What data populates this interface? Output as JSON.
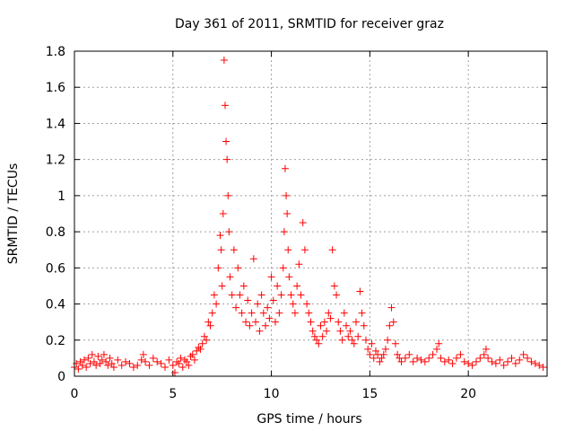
{
  "chart_data": {
    "type": "scatter",
    "title": "Day 361 of 2011, SRMTID for receiver graz",
    "xlabel": "GPS time / hours",
    "ylabel": "SRMTID / TECUs",
    "xlim": [
      0,
      24
    ],
    "ylim": [
      0,
      1.8
    ],
    "xticks": [
      0,
      5,
      10,
      15,
      20
    ],
    "xtick_labels": [
      "0",
      "5",
      "10",
      "15",
      "20"
    ],
    "yticks": [
      0,
      0.2,
      0.4,
      0.6,
      0.8,
      1,
      1.2,
      1.4,
      1.6,
      1.8
    ],
    "ytick_labels": [
      "0",
      "0.2",
      "0.4",
      "0.6",
      "0.8",
      "1",
      "1.2",
      "1.4",
      "1.6",
      "1.8"
    ],
    "grid": true,
    "marker": "+",
    "series": [
      {
        "name": "SRMTID",
        "color": "#ff0000",
        "x": [
          0.0,
          0.1,
          0.2,
          0.3,
          0.4,
          0.5,
          0.6,
          0.7,
          0.8,
          0.9,
          1.0,
          1.1,
          1.2,
          1.3,
          1.4,
          1.5,
          1.6,
          1.7,
          1.8,
          1.9,
          2.0,
          2.2,
          2.4,
          2.6,
          2.8,
          3.0,
          3.2,
          3.4,
          3.5,
          3.6,
          3.8,
          4.0,
          4.2,
          4.4,
          4.6,
          4.8,
          5.0,
          5.1,
          5.2,
          5.3,
          5.4,
          5.5,
          5.6,
          5.7,
          5.8,
          5.9,
          6.0,
          6.1,
          6.2,
          6.3,
          6.4,
          6.5,
          6.6,
          6.7,
          6.8,
          6.9,
          7.0,
          7.1,
          7.2,
          7.3,
          7.4,
          7.45,
          7.5,
          7.55,
          7.6,
          7.65,
          7.7,
          7.75,
          7.8,
          7.85,
          7.9,
          8.0,
          8.1,
          8.2,
          8.3,
          8.4,
          8.5,
          8.6,
          8.7,
          8.8,
          8.9,
          9.0,
          9.1,
          9.2,
          9.3,
          9.4,
          9.5,
          9.6,
          9.7,
          9.8,
          9.9,
          10.0,
          10.1,
          10.2,
          10.3,
          10.4,
          10.5,
          10.6,
          10.65,
          10.7,
          10.75,
          10.8,
          10.85,
          10.9,
          11.0,
          11.1,
          11.2,
          11.3,
          11.4,
          11.5,
          11.6,
          11.7,
          11.8,
          11.9,
          12.0,
          12.1,
          12.2,
          12.3,
          12.4,
          12.5,
          12.6,
          12.7,
          12.8,
          12.9,
          13.0,
          13.1,
          13.2,
          13.3,
          13.4,
          13.5,
          13.6,
          13.7,
          13.8,
          13.9,
          14.0,
          14.1,
          14.2,
          14.3,
          14.4,
          14.5,
          14.6,
          14.7,
          14.8,
          14.9,
          15.0,
          15.1,
          15.2,
          15.3,
          15.4,
          15.5,
          15.6,
          15.7,
          15.8,
          15.9,
          16.0,
          16.1,
          16.2,
          16.3,
          16.4,
          16.5,
          16.6,
          16.8,
          17.0,
          17.2,
          17.4,
          17.6,
          17.8,
          18.0,
          18.2,
          18.4,
          18.5,
          18.6,
          18.8,
          19.0,
          19.2,
          19.4,
          19.6,
          19.8,
          20.0,
          20.2,
          20.4,
          20.6,
          20.8,
          20.9,
          21.0,
          21.2,
          21.4,
          21.6,
          21.8,
          22.0,
          22.2,
          22.4,
          22.6,
          22.8,
          23.0,
          23.2,
          23.4,
          23.6,
          23.8
        ],
        "y": [
          0.05,
          0.07,
          0.04,
          0.08,
          0.06,
          0.09,
          0.05,
          0.1,
          0.07,
          0.12,
          0.08,
          0.06,
          0.11,
          0.07,
          0.09,
          0.12,
          0.08,
          0.06,
          0.1,
          0.07,
          0.05,
          0.09,
          0.06,
          0.08,
          0.07,
          0.05,
          0.06,
          0.09,
          0.12,
          0.08,
          0.06,
          0.1,
          0.08,
          0.07,
          0.05,
          0.09,
          0.06,
          0.02,
          0.08,
          0.07,
          0.1,
          0.05,
          0.09,
          0.08,
          0.06,
          0.11,
          0.12,
          0.09,
          0.14,
          0.16,
          0.15,
          0.18,
          0.22,
          0.2,
          0.3,
          0.28,
          0.35,
          0.45,
          0.4,
          0.6,
          0.78,
          0.7,
          0.5,
          0.9,
          1.75,
          1.5,
          1.3,
          1.2,
          1.0,
          0.8,
          0.55,
          0.45,
          0.7,
          0.38,
          0.6,
          0.45,
          0.35,
          0.5,
          0.3,
          0.42,
          0.28,
          0.35,
          0.65,
          0.3,
          0.4,
          0.25,
          0.45,
          0.35,
          0.28,
          0.38,
          0.32,
          0.55,
          0.42,
          0.3,
          0.5,
          0.35,
          0.45,
          0.6,
          0.8,
          1.15,
          1.0,
          0.9,
          0.7,
          0.55,
          0.45,
          0.4,
          0.35,
          0.5,
          0.62,
          0.45,
          0.85,
          0.7,
          0.4,
          0.35,
          0.3,
          0.25,
          0.22,
          0.2,
          0.18,
          0.28,
          0.22,
          0.3,
          0.25,
          0.35,
          0.32,
          0.7,
          0.5,
          0.45,
          0.3,
          0.25,
          0.2,
          0.35,
          0.28,
          0.22,
          0.25,
          0.2,
          0.18,
          0.3,
          0.22,
          0.47,
          0.35,
          0.28,
          0.2,
          0.15,
          0.12,
          0.18,
          0.1,
          0.14,
          0.12,
          0.08,
          0.1,
          0.12,
          0.15,
          0.2,
          0.28,
          0.38,
          0.3,
          0.18,
          0.12,
          0.1,
          0.08,
          0.1,
          0.12,
          0.08,
          0.1,
          0.09,
          0.08,
          0.1,
          0.12,
          0.15,
          0.18,
          0.1,
          0.08,
          0.09,
          0.07,
          0.1,
          0.12,
          0.08,
          0.07,
          0.06,
          0.08,
          0.1,
          0.12,
          0.15,
          0.1,
          0.08,
          0.07,
          0.09,
          0.06,
          0.08,
          0.1,
          0.07,
          0.09,
          0.12,
          0.1,
          0.08,
          0.07,
          0.06,
          0.05
        ]
      }
    ]
  }
}
